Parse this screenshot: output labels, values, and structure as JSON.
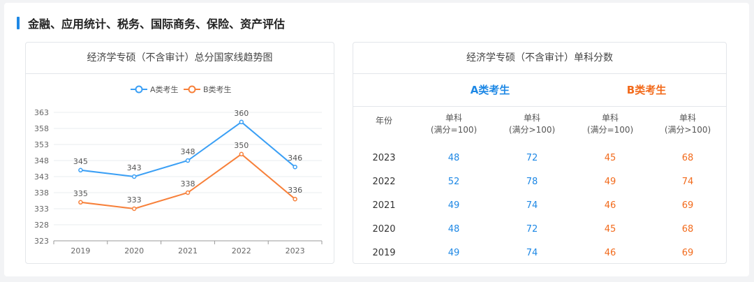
{
  "section": {
    "title": "金融、应用统计、税务、国际商务、保险、资产评估"
  },
  "left_card": {
    "title": "经济学专硕（不含审计）总分国家线趋势图"
  },
  "right_card": {
    "title": "经济学专硕（不含审计）单科分数",
    "group_a": "A类考生",
    "group_b": "B类考生",
    "headers": {
      "year": "年份",
      "col1_l1": "单科",
      "col1_l2": "(满分=100)",
      "col2_l1": "单科",
      "col2_l2": "(满分>100)",
      "col3_l1": "单科",
      "col3_l2": "(满分=100)",
      "col4_l1": "单科",
      "col4_l2": "(满分>100)"
    },
    "rows": [
      {
        "year": "2023",
        "a100": "48",
        "a_gt100": "72",
        "b100": "45",
        "b_gt100": "68"
      },
      {
        "year": "2022",
        "a100": "52",
        "a_gt100": "78",
        "b100": "49",
        "b_gt100": "74"
      },
      {
        "year": "2021",
        "a100": "49",
        "a_gt100": "74",
        "b100": "46",
        "b_gt100": "69"
      },
      {
        "year": "2020",
        "a100": "48",
        "a_gt100": "72",
        "b100": "45",
        "b_gt100": "68"
      },
      {
        "year": "2019",
        "a100": "49",
        "a_gt100": "74",
        "b100": "46",
        "b_gt100": "69"
      }
    ]
  },
  "colors": {
    "accent": "#1e88e5",
    "series_a": "#3a9ff5",
    "series_b": "#f7803a"
  },
  "chart_data": {
    "type": "line",
    "categories": [
      "2019",
      "2020",
      "2021",
      "2022",
      "2023"
    ],
    "series": [
      {
        "name": "A类考生",
        "values": [
          345,
          343,
          348,
          360,
          346
        ]
      },
      {
        "name": "B类考生",
        "values": [
          335,
          333,
          338,
          350,
          336
        ]
      }
    ],
    "yticks": [
      323,
      328,
      333,
      338,
      343,
      348,
      353,
      358,
      363
    ],
    "ylim": [
      323,
      363
    ],
    "legend": "top-center",
    "grid": true
  }
}
